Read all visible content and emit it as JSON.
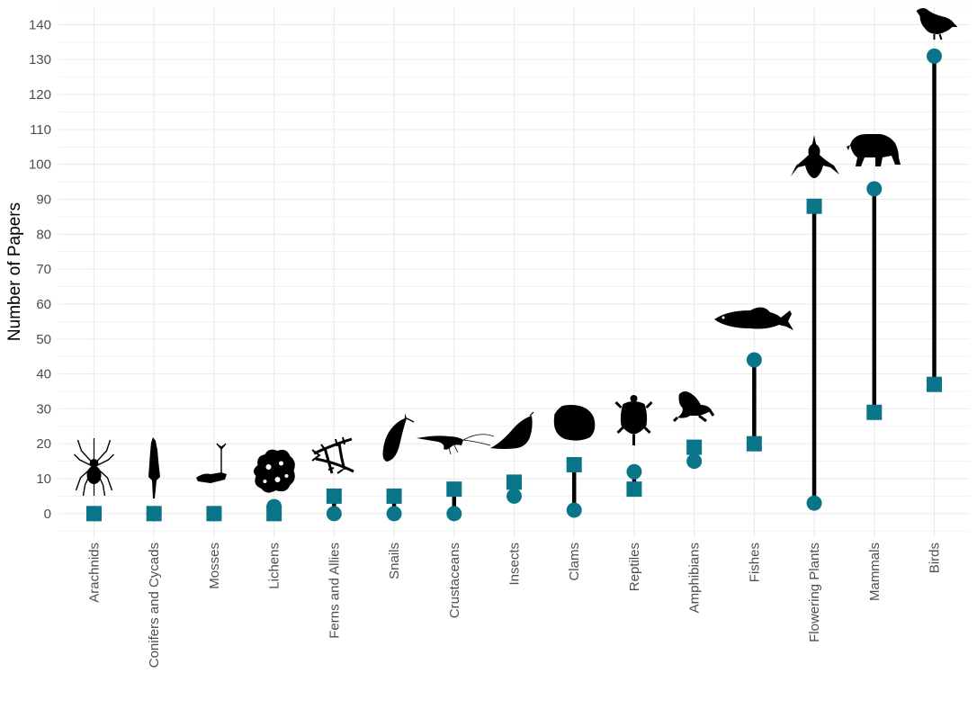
{
  "chart_data": {
    "type": "dumbbell",
    "ylabel": "Number of Papers",
    "xlabel": "",
    "ylim": [
      -7,
      145
    ],
    "y_ticks": [
      0,
      10,
      20,
      30,
      40,
      50,
      60,
      70,
      80,
      90,
      100,
      110,
      120,
      130,
      140
    ],
    "grid": true,
    "legend": "none",
    "categories": [
      "Arachnids",
      "Conifers and Cycads",
      "Mosses",
      "Lichens",
      "Ferns and Allies",
      "Snails",
      "Crustaceans",
      "Insects",
      "Clams",
      "Reptiles",
      "Amphibians",
      "Fishes",
      "Flowering Plants",
      "Mammals",
      "Birds"
    ],
    "series": [
      {
        "marker": "circle",
        "values": [
          0,
          0,
          0,
          2,
          0,
          0,
          0,
          5,
          1,
          12,
          15,
          44,
          3,
          93,
          131
        ]
      },
      {
        "marker": "square",
        "values": [
          0,
          0,
          0,
          0,
          5,
          5,
          7,
          9,
          14,
          7,
          19,
          20,
          88,
          29,
          37
        ]
      }
    ],
    "icons": [
      "spider-icon",
      "tree-icon",
      "moss-icon",
      "lichen-icon",
      "fern-icon",
      "snail-icon",
      "shrimp-icon",
      "moth-icon",
      "clam-icon",
      "turtle-icon",
      "frog-icon",
      "fish-icon",
      "orchid-icon",
      "bear-icon",
      "grouse-icon"
    ],
    "colors": {
      "marker": "#0a7589",
      "segment": "#000000",
      "grid": "#ebebeb",
      "icon": "#000000"
    }
  }
}
